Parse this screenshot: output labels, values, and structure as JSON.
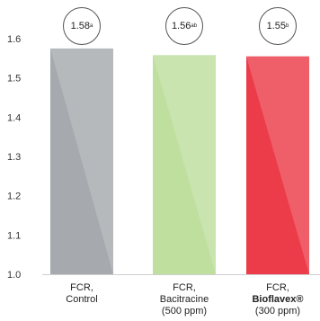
{
  "chart_data": {
    "type": "bar",
    "categories": [
      {
        "line1": "FCR,",
        "line2": "Control",
        "line3": ""
      },
      {
        "line1": "FCR,",
        "line2": "Bacitracine",
        "line3": "(500 ppm)"
      },
      {
        "line1": "FCR,",
        "line2": "Bioflavex®",
        "line3": "(300 ppm)"
      }
    ],
    "values": [
      1.575,
      1.558,
      1.555
    ],
    "value_labels": [
      {
        "value": "1.58",
        "sup": "a"
      },
      {
        "value": "1.56",
        "sup": "ab"
      },
      {
        "value": "1.55",
        "sup": "b"
      }
    ],
    "colors": [
      "#a6aaae",
      "#bedf9e",
      "#ec3c4a"
    ],
    "ylim": [
      1.0,
      1.6
    ],
    "yticks": [
      "1.0",
      "1.1",
      "1.2",
      "1.3",
      "1.4",
      "1.5",
      "1.6"
    ],
    "grid": false,
    "title": "",
    "xlabel": "",
    "ylabel": ""
  }
}
